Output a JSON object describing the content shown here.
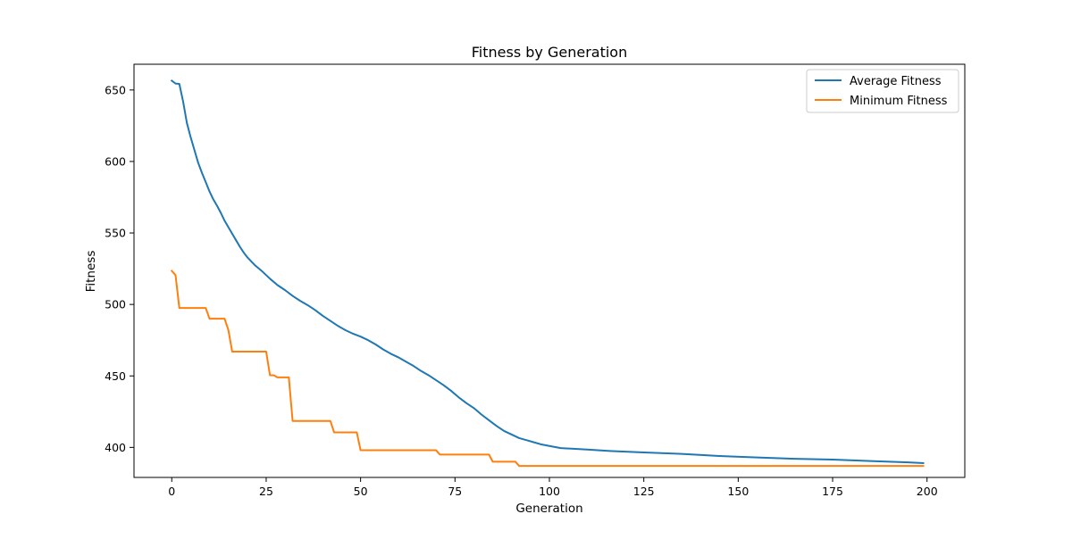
{
  "chart_data": {
    "type": "line",
    "title": "Fitness by Generation",
    "xlabel": "Generation",
    "ylabel": "Fitness",
    "xlim": [
      -10,
      210
    ],
    "ylim": [
      379,
      668
    ],
    "xticks": [
      0,
      25,
      50,
      75,
      100,
      125,
      150,
      175,
      200
    ],
    "yticks": [
      400,
      450,
      500,
      550,
      600,
      650
    ],
    "grid": false,
    "legend_position": "top-right",
    "series": [
      {
        "name": "Average Fitness",
        "color": "#1f77b4",
        "points": [
          [
            0,
            656.5
          ],
          [
            1,
            654.5
          ],
          [
            2,
            654.3
          ],
          [
            3,
            642
          ],
          [
            4,
            627
          ],
          [
            5,
            617
          ],
          [
            6,
            608
          ],
          [
            7,
            599
          ],
          [
            8,
            592
          ],
          [
            9,
            585.5
          ],
          [
            10,
            579
          ],
          [
            11,
            573.5
          ],
          [
            12,
            569
          ],
          [
            13,
            564
          ],
          [
            14,
            558.5
          ],
          [
            15,
            554
          ],
          [
            16,
            549.5
          ],
          [
            17,
            545
          ],
          [
            18,
            540.5
          ],
          [
            19,
            536.5
          ],
          [
            20,
            533
          ],
          [
            22,
            527.5
          ],
          [
            24,
            523
          ],
          [
            26,
            518
          ],
          [
            28,
            513.5
          ],
          [
            30,
            510
          ],
          [
            32,
            506
          ],
          [
            34,
            502.5
          ],
          [
            36,
            499.5
          ],
          [
            38,
            496
          ],
          [
            40,
            492
          ],
          [
            42,
            488.5
          ],
          [
            44,
            485
          ],
          [
            46,
            482
          ],
          [
            48,
            479.5
          ],
          [
            50,
            477.5
          ],
          [
            52,
            475
          ],
          [
            54,
            472
          ],
          [
            56,
            468.5
          ],
          [
            58,
            465.5
          ],
          [
            60,
            463
          ],
          [
            62,
            460
          ],
          [
            64,
            457
          ],
          [
            66,
            453.5
          ],
          [
            68,
            450.5
          ],
          [
            70,
            447
          ],
          [
            72,
            443.5
          ],
          [
            74,
            439.5
          ],
          [
            76,
            435
          ],
          [
            78,
            431
          ],
          [
            80,
            427.5
          ],
          [
            82,
            423
          ],
          [
            84,
            419
          ],
          [
            86,
            415
          ],
          [
            88,
            411.5
          ],
          [
            90,
            409
          ],
          [
            92,
            406.5
          ],
          [
            94,
            405
          ],
          [
            96,
            403.5
          ],
          [
            98,
            402
          ],
          [
            100,
            401
          ],
          [
            103,
            399.5
          ],
          [
            110,
            398.5
          ],
          [
            116,
            397.5
          ],
          [
            125,
            396.5
          ],
          [
            135,
            395.5
          ],
          [
            145,
            394
          ],
          [
            155,
            393
          ],
          [
            165,
            392
          ],
          [
            175,
            391.5
          ],
          [
            185,
            390.5
          ],
          [
            195,
            389.5
          ],
          [
            199,
            389
          ]
        ]
      },
      {
        "name": "Minimum Fitness",
        "color": "#ff7f0e",
        "points": [
          [
            0,
            523.5
          ],
          [
            1,
            520.5
          ],
          [
            2,
            497.5
          ],
          [
            9,
            497.5
          ],
          [
            10,
            490
          ],
          [
            14,
            490
          ],
          [
            15,
            482
          ],
          [
            16,
            467
          ],
          [
            25,
            467
          ],
          [
            26,
            450.5
          ],
          [
            27,
            450.5
          ],
          [
            28,
            449
          ],
          [
            31,
            449
          ],
          [
            32,
            418.5
          ],
          [
            42,
            418.5
          ],
          [
            43,
            410.5
          ],
          [
            49,
            410.5
          ],
          [
            50,
            398
          ],
          [
            70,
            398
          ],
          [
            71,
            395
          ],
          [
            84,
            395
          ],
          [
            85,
            390
          ],
          [
            91,
            390
          ],
          [
            92,
            387
          ],
          [
            199,
            387
          ]
        ]
      }
    ]
  }
}
